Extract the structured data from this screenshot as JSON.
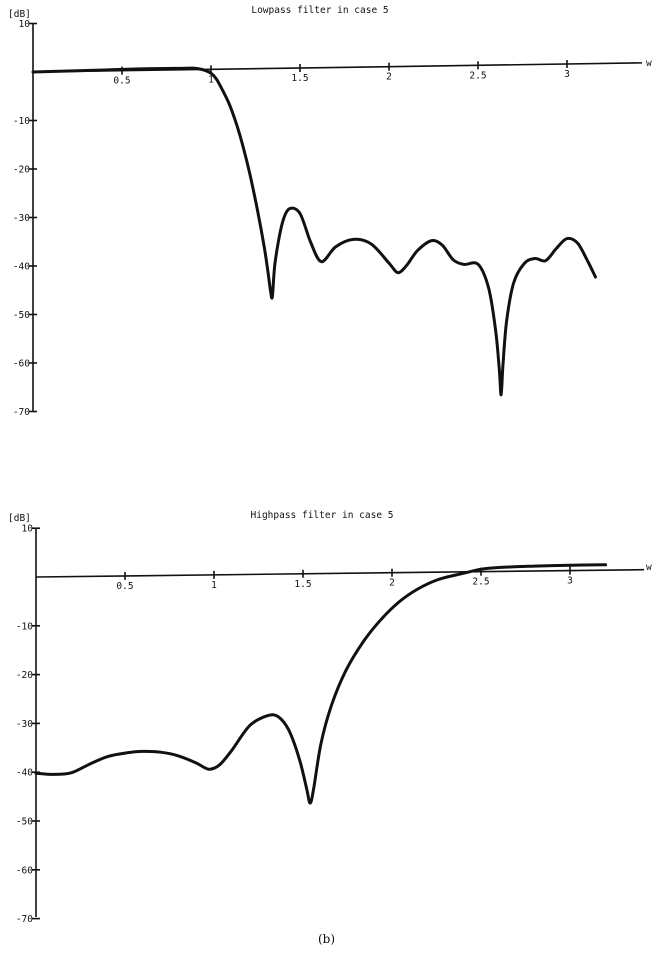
{
  "caption": "(b)",
  "chart_data": [
    {
      "type": "line",
      "title": "Lowpass filter in case 5",
      "xlabel": "w",
      "ylabel": "[dB]",
      "xlim": [
        0,
        3.2
      ],
      "ylim": [
        -70,
        10
      ],
      "x_ticks": [
        0.5,
        1,
        1.5,
        2,
        2.5,
        3
      ],
      "x_tick_labels": [
        "0.5",
        "1",
        "1.5",
        "2",
        "2.5",
        "3"
      ],
      "y_ticks": [
        10,
        -10,
        -20,
        -30,
        -40,
        -50,
        -60,
        -70
      ],
      "y_tick_labels": [
        "10",
        "-10",
        "-20",
        "-30",
        "-40",
        "-50",
        "-60",
        "-70"
      ],
      "grid": false,
      "series": [
        {
          "x": [
            0,
            0.2,
            0.4,
            0.6,
            0.8,
            0.9,
            0.95,
            1.0,
            1.03,
            1.06,
            1.1,
            1.14,
            1.18,
            1.22,
            1.26,
            1.3,
            1.32,
            1.335,
            1.345,
            1.36,
            1.4,
            1.44,
            1.5,
            1.56,
            1.62,
            1.7,
            1.8,
            1.9,
            2.0,
            2.05,
            2.1,
            2.16,
            2.24,
            2.3,
            2.36,
            2.42,
            2.5,
            2.56,
            2.6,
            2.62,
            2.63,
            2.64,
            2.66,
            2.7,
            2.76,
            2.82,
            2.88,
            2.94,
            3.0,
            3.06,
            3.12,
            3.16
          ],
          "y": [
            0,
            0.1,
            0.2,
            0.3,
            0.3,
            0.3,
            0,
            -0.8,
            -2,
            -4,
            -7,
            -11,
            -16,
            -22,
            -29,
            -37,
            -42,
            -46,
            -47,
            -40,
            -32,
            -29,
            -30,
            -36,
            -40,
            -37,
            -35.5,
            -36.5,
            -40.5,
            -42.5,
            -41,
            -38,
            -36,
            -37,
            -40,
            -41,
            -41,
            -46,
            -55,
            -63,
            -68,
            -62,
            -53,
            -45,
            -41,
            -40,
            -40.5,
            -38,
            -36,
            -37,
            -41,
            -44
          ]
        }
      ]
    },
    {
      "type": "line",
      "title": "Highpass filter in case 5",
      "xlabel": "w",
      "ylabel": "[dB]",
      "xlim": [
        0,
        3.2
      ],
      "ylim": [
        -70,
        10
      ],
      "x_ticks": [
        0.5,
        1,
        1.5,
        2,
        2.5,
        3
      ],
      "x_tick_labels": [
        "0.5",
        "1",
        "1.5",
        "2",
        "2.5",
        "3"
      ],
      "y_ticks": [
        10,
        -10,
        -20,
        -30,
        -40,
        -50,
        -60,
        -70
      ],
      "y_tick_labels": [
        "10",
        "-10",
        "-20",
        "-30",
        "-40",
        "-50",
        "-60",
        "-70"
      ],
      "grid": false,
      "series": [
        {
          "x": [
            0,
            0.1,
            0.2,
            0.3,
            0.4,
            0.5,
            0.6,
            0.7,
            0.8,
            0.9,
            0.97,
            1.03,
            1.1,
            1.2,
            1.3,
            1.36,
            1.42,
            1.48,
            1.52,
            1.54,
            1.56,
            1.6,
            1.66,
            1.74,
            1.84,
            1.94,
            2.04,
            2.14,
            2.26,
            2.4,
            2.5,
            2.6,
            2.8,
            3.0,
            3.2
          ],
          "y": [
            -40.2,
            -40.5,
            -40.2,
            -38.5,
            -37,
            -36.3,
            -36,
            -36.2,
            -37,
            -38.5,
            -39.8,
            -39,
            -36,
            -31,
            -29,
            -29.2,
            -32,
            -38,
            -44,
            -47,
            -44,
            -35,
            -27,
            -20,
            -14,
            -9.5,
            -6,
            -3.5,
            -1.5,
            -0.3,
            0.5,
            0.8,
            1,
            1.1,
            1.1
          ]
        }
      ]
    }
  ]
}
